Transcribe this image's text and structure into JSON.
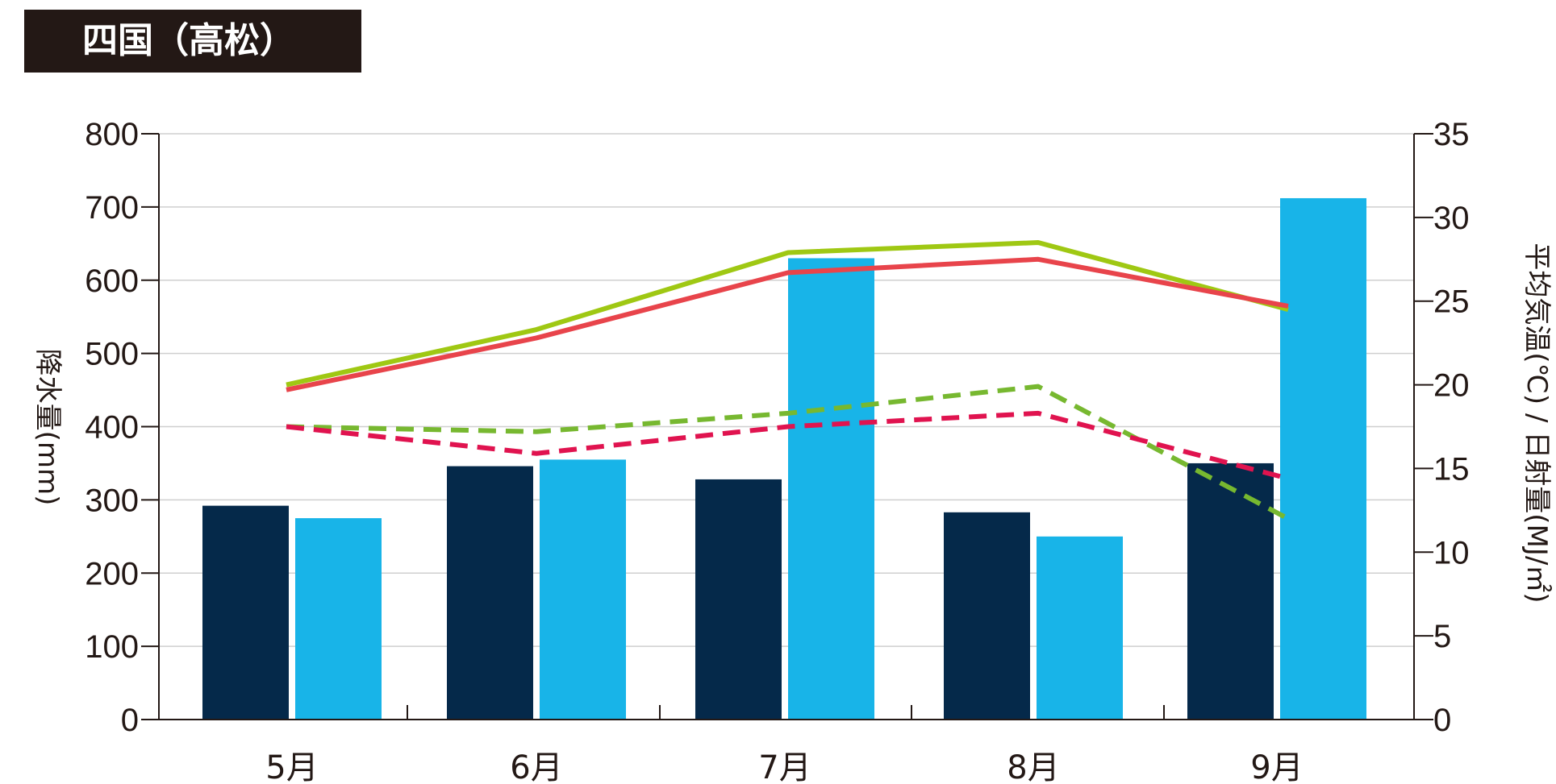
{
  "title": "四国（高松）",
  "chart_data": {
    "type": "bar",
    "categories": [
      "5月",
      "6月",
      "7月",
      "8月",
      "9月"
    ],
    "ylabel_left": "降水量(mm)",
    "ylabel_right": "平均気温(℃) / 日射量(MJ/㎡)",
    "ylim_left": [
      0,
      800
    ],
    "ylim_right": [
      0,
      35
    ],
    "yticks_left": [
      0,
      100,
      200,
      300,
      400,
      500,
      600,
      700,
      800
    ],
    "yticks_right": [
      0,
      5,
      10,
      15,
      20,
      25,
      30,
      35
    ],
    "grid": true,
    "bar_series": [
      {
        "color": "#05294a",
        "axis": "left",
        "values": [
          292,
          346,
          328,
          283,
          350
        ]
      },
      {
        "color": "#18b4e8",
        "axis": "left",
        "values": [
          275,
          355,
          630,
          250,
          712
        ]
      }
    ],
    "line_series": [
      {
        "color": "#9fc813",
        "style": "solid",
        "axis": "right",
        "values": [
          20.0,
          23.3,
          27.9,
          28.5,
          24.5
        ]
      },
      {
        "color": "#e8444b",
        "style": "solid",
        "axis": "right",
        "values": [
          19.7,
          22.8,
          26.7,
          27.5,
          24.7
        ]
      },
      {
        "color": "#77b830",
        "style": "dashed",
        "axis": "right",
        "values": [
          17.5,
          17.2,
          18.3,
          19.9,
          12.0
        ]
      },
      {
        "color": "#e0134f",
        "style": "dashed",
        "axis": "right",
        "values": [
          17.5,
          15.9,
          17.5,
          18.3,
          14.4
        ]
      }
    ]
  }
}
